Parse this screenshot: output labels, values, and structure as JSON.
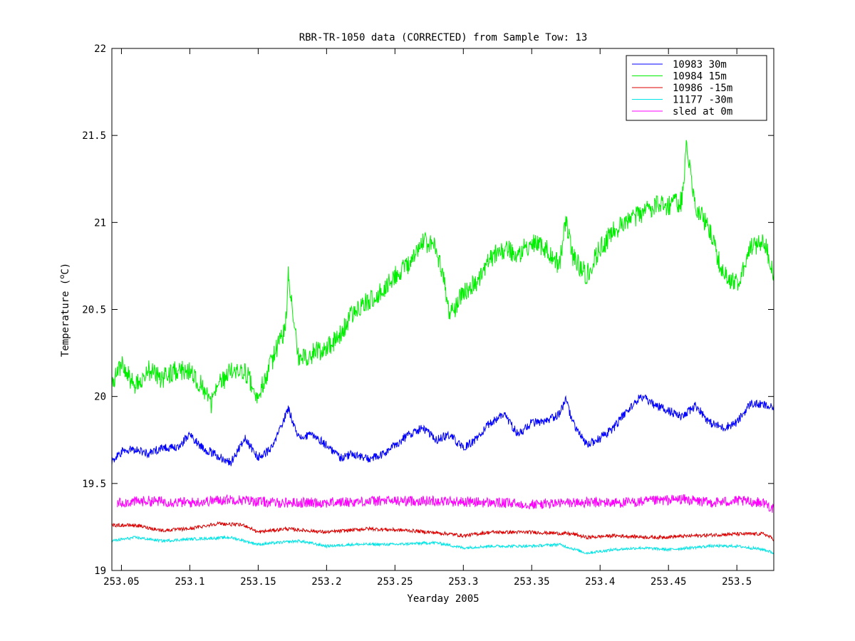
{
  "chart_data": {
    "type": "line",
    "title": "RBR-TR-1050 data (CORRECTED) from Sample Tow: 13",
    "xlabel": "Yearday 2005",
    "ylabel": "Temperature (°C)",
    "ylabel_parts": {
      "pre": "Temperature (",
      "sup": "o",
      "post": "C)"
    },
    "xlim": [
      253.043,
      253.527
    ],
    "ylim": [
      19,
      22
    ],
    "xticks": [
      253.05,
      253.1,
      253.15,
      253.2,
      253.25,
      253.3,
      253.35,
      253.4,
      253.45,
      253.5
    ],
    "xtick_labels": [
      "253.05",
      "253.1",
      "253.15",
      "253.2",
      "253.25",
      "253.3",
      "253.35",
      "253.4",
      "253.45",
      "253.5"
    ],
    "yticks": [
      19,
      19.5,
      20,
      20.5,
      21,
      21.5,
      22
    ],
    "ytick_labels": [
      "19",
      "19.5",
      "20",
      "20.5",
      "21",
      "21.5",
      "22"
    ],
    "grid": false,
    "legend_position": "top-right",
    "series": [
      {
        "name": "10983 30m",
        "color": "#0000ff",
        "noise": 0.025,
        "x": [
          253.043,
          253.05,
          253.06,
          253.07,
          253.08,
          253.09,
          253.1,
          253.11,
          253.12,
          253.13,
          253.14,
          253.15,
          253.16,
          253.172,
          253.18,
          253.19,
          253.2,
          253.21,
          253.22,
          253.23,
          253.24,
          253.25,
          253.26,
          253.27,
          253.28,
          253.29,
          253.3,
          253.31,
          253.32,
          253.33,
          253.34,
          253.35,
          253.36,
          253.37,
          253.375,
          253.38,
          253.39,
          253.4,
          253.41,
          253.42,
          253.43,
          253.44,
          253.45,
          253.46,
          253.47,
          253.48,
          253.49,
          253.5,
          253.51,
          253.52,
          253.527
        ],
        "y": [
          19.62,
          19.68,
          19.7,
          19.67,
          19.71,
          19.7,
          19.78,
          19.7,
          19.66,
          19.62,
          19.76,
          19.65,
          19.7,
          19.93,
          19.76,
          19.78,
          19.72,
          19.65,
          19.67,
          19.64,
          19.66,
          19.72,
          19.78,
          19.82,
          19.75,
          19.78,
          19.7,
          19.76,
          19.85,
          19.9,
          19.78,
          19.85,
          19.85,
          19.9,
          19.98,
          19.85,
          19.72,
          19.76,
          19.82,
          19.92,
          20.0,
          19.95,
          19.92,
          19.88,
          19.95,
          19.85,
          19.82,
          19.85,
          19.96,
          19.95,
          19.93
        ]
      },
      {
        "name": "10984 15m",
        "color": "#00ee00",
        "noise": 0.06,
        "x": [
          253.043,
          253.05,
          253.06,
          253.07,
          253.08,
          253.09,
          253.1,
          253.11,
          253.115,
          253.12,
          253.13,
          253.14,
          253.15,
          253.16,
          253.17,
          253.172,
          253.175,
          253.18,
          253.19,
          253.2,
          253.21,
          253.22,
          253.23,
          253.24,
          253.25,
          253.26,
          253.27,
          253.28,
          253.285,
          253.29,
          253.3,
          253.31,
          253.32,
          253.33,
          253.34,
          253.35,
          253.36,
          253.37,
          253.375,
          253.38,
          253.39,
          253.4,
          253.41,
          253.42,
          253.43,
          253.44,
          253.45,
          253.46,
          253.463,
          253.47,
          253.48,
          253.49,
          253.5,
          253.51,
          253.52,
          253.527
        ],
        "y": [
          20.05,
          20.2,
          20.05,
          20.15,
          20.1,
          20.15,
          20.15,
          20.05,
          19.95,
          20.05,
          20.15,
          20.15,
          20.0,
          20.2,
          20.4,
          20.7,
          20.5,
          20.2,
          20.25,
          20.28,
          20.35,
          20.5,
          20.55,
          20.6,
          20.7,
          20.75,
          20.9,
          20.85,
          20.7,
          20.45,
          20.6,
          20.65,
          20.8,
          20.85,
          20.82,
          20.88,
          20.85,
          20.75,
          21.0,
          20.8,
          20.7,
          20.85,
          20.95,
          21.0,
          21.05,
          21.1,
          21.1,
          21.12,
          21.45,
          21.1,
          20.95,
          20.7,
          20.65,
          20.85,
          20.9,
          20.7
        ]
      },
      {
        "name": "10986 -15m",
        "color": "#dd0000",
        "noise": 0.01,
        "x": [
          253.043,
          253.06,
          253.08,
          253.1,
          253.12,
          253.14,
          253.15,
          253.17,
          253.2,
          253.23,
          253.26,
          253.29,
          253.3,
          253.32,
          253.35,
          253.38,
          253.39,
          253.41,
          253.44,
          253.47,
          253.5,
          253.52,
          253.527
        ],
        "y": [
          19.26,
          19.26,
          19.23,
          19.24,
          19.27,
          19.26,
          19.22,
          19.24,
          19.22,
          19.24,
          19.23,
          19.21,
          19.2,
          19.22,
          19.22,
          19.21,
          19.19,
          19.2,
          19.19,
          19.2,
          19.21,
          19.21,
          19.18
        ]
      },
      {
        "name": "11177 -30m",
        "color": "#00e5e5",
        "noise": 0.008,
        "x": [
          253.043,
          253.06,
          253.08,
          253.1,
          253.13,
          253.15,
          253.18,
          253.2,
          253.22,
          253.25,
          253.28,
          253.3,
          253.32,
          253.35,
          253.37,
          253.39,
          253.41,
          253.43,
          253.45,
          253.48,
          253.5,
          253.52,
          253.527
        ],
        "y": [
          19.17,
          19.19,
          19.17,
          19.18,
          19.19,
          19.15,
          19.17,
          19.14,
          19.15,
          19.15,
          19.16,
          19.13,
          19.14,
          19.14,
          19.15,
          19.1,
          19.12,
          19.13,
          19.12,
          19.14,
          19.14,
          19.12,
          19.1
        ]
      },
      {
        "name": "sled at 0m",
        "color": "#ff00ff",
        "noise": 0.03,
        "x": [
          253.047,
          253.07,
          253.1,
          253.13,
          253.16,
          253.2,
          253.24,
          253.28,
          253.32,
          253.35,
          253.38,
          253.42,
          253.44,
          253.46,
          253.48,
          253.5,
          253.52,
          253.527
        ],
        "y": [
          19.39,
          19.4,
          19.39,
          19.41,
          19.39,
          19.39,
          19.4,
          19.4,
          19.39,
          19.38,
          19.39,
          19.39,
          19.4,
          19.41,
          19.39,
          19.4,
          19.39,
          19.35
        ]
      }
    ]
  }
}
